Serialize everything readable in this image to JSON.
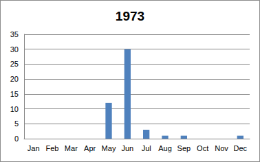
{
  "chart_data": {
    "type": "bar",
    "title": "1973",
    "categories": [
      "Jan",
      "Feb",
      "Mar",
      "Apr",
      "May",
      "Jun",
      "Jul",
      "Aug",
      "Sep",
      "Oct",
      "Nov",
      "Dec"
    ],
    "values": [
      0,
      0,
      0,
      0,
      12,
      30,
      3,
      1,
      1,
      0,
      0,
      1
    ],
    "color": "#4f81bd",
    "ylim": [
      0,
      35
    ],
    "yticks": [
      0,
      5,
      10,
      15,
      20,
      25,
      30,
      35
    ],
    "grid": true
  }
}
